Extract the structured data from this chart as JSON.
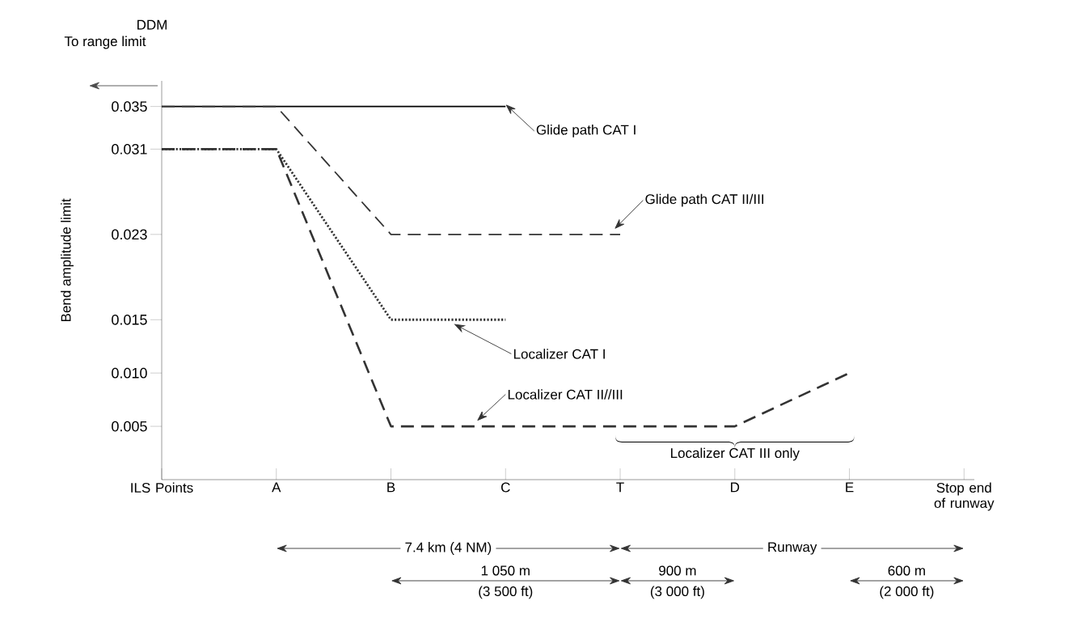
{
  "chart_data": {
    "type": "line",
    "ylabel": "Bend amplitude limit",
    "categories": [
      "ILS Points",
      "A",
      "B",
      "C",
      "T",
      "D",
      "E",
      "Stop end of runway"
    ],
    "series": [
      {
        "name": "Glide path CAT I",
        "color": "#000000",
        "line_style": "solid",
        "values": [
          0.035,
          0.035,
          0.035,
          0.035,
          null,
          null,
          null,
          null
        ]
      },
      {
        "name": "Glide path CAT II/III",
        "color": "#333333",
        "line_style": "dashed",
        "values": [
          0.035,
          0.035,
          0.023,
          0.023,
          0.023,
          null,
          null,
          null
        ]
      },
      {
        "name": "Localizer CAT I",
        "color": "#333333",
        "line_style": "dotted",
        "values": [
          0.031,
          0.031,
          0.015,
          0.015,
          null,
          null,
          null,
          null
        ]
      },
      {
        "name": "Localizer CAT II//III",
        "color": "#333333",
        "line_style": "dashed",
        "values": [
          0.031,
          0.031,
          0.005,
          0.005,
          0.005,
          0.005,
          0.01,
          null
        ]
      }
    ],
    "ylim": [
      0,
      0.0374
    ],
    "yticks": [
      {
        "value": 0.005,
        "label": "0.005"
      },
      {
        "value": 0.01,
        "label": "0.010"
      },
      {
        "value": 0.015,
        "label": "0.015"
      },
      0.023,
      0.031,
      0.035
    ],
    "grid": false,
    "legend": false,
    "marker": "none",
    "annotations": [
      "DDM",
      "To range limit",
      "7.4 km (4 NM)",
      "Runway",
      "1 050 m",
      "(3 500 ft)",
      "900 m",
      "(3 000 ft)",
      "600 m",
      "(2 000 ft)",
      "Localizer CAT III only"
    ]
  }
}
